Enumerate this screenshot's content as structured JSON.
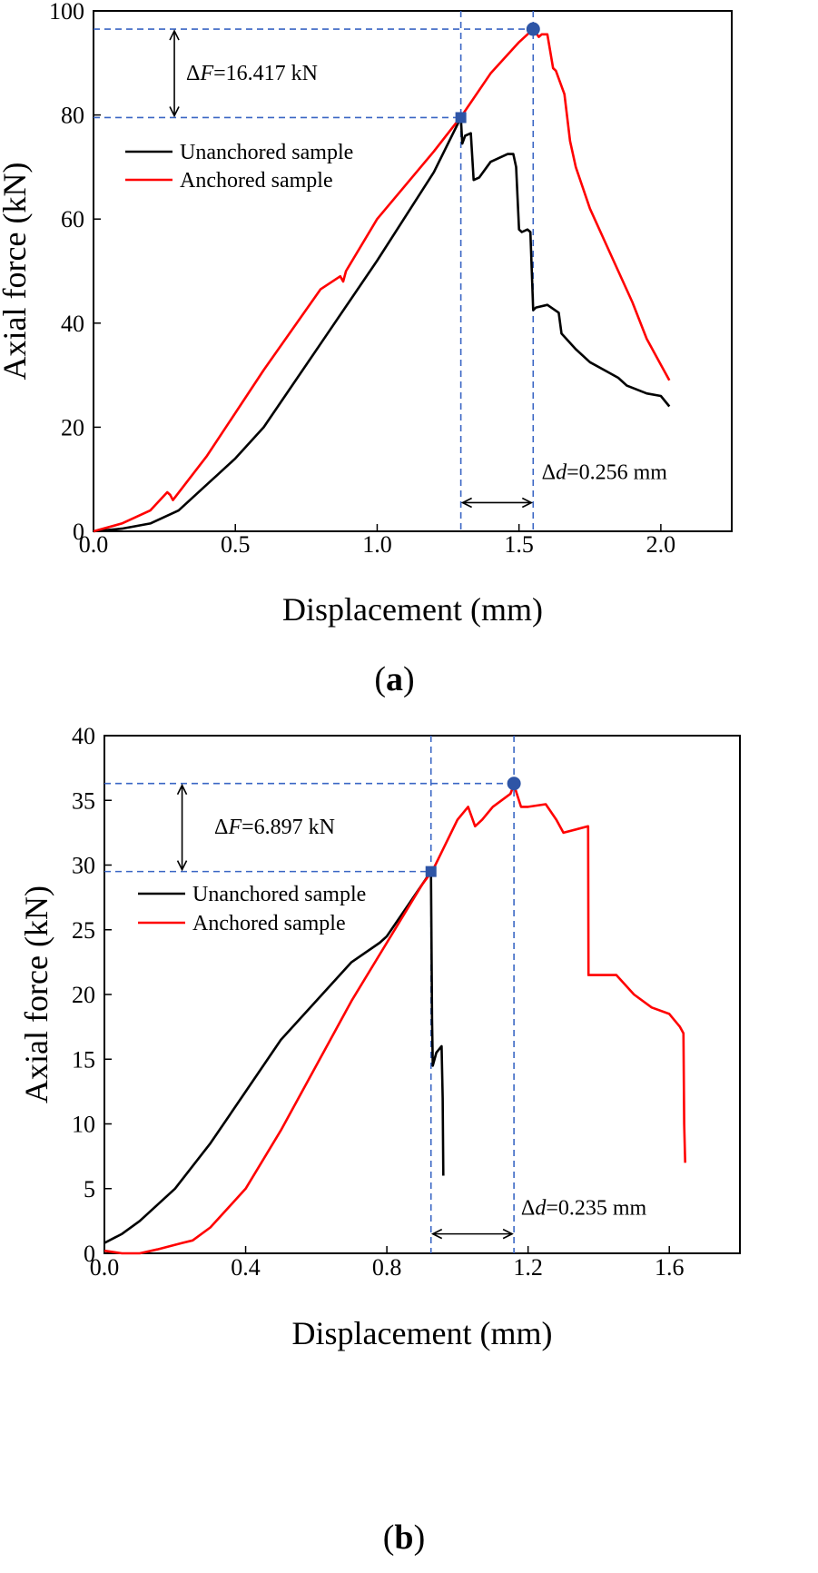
{
  "chart_data": [
    {
      "type": "line",
      "panel_label": "a",
      "xlabel": "Displacement (mm)",
      "ylabel": "Axial force (kN)",
      "xlim": [
        0,
        2.25
      ],
      "ylim": [
        0,
        100
      ],
      "xticks": [
        0.0,
        0.5,
        1.0,
        1.5,
        2.0
      ],
      "xtick_labels": [
        "0.0",
        "0.5",
        "1.0",
        "1.5",
        "2.0"
      ],
      "yticks": [
        0,
        20,
        40,
        60,
        80,
        100
      ],
      "ytick_labels": [
        "0",
        "20",
        "40",
        "60",
        "80",
        "100"
      ],
      "legend": [
        "Unanchored sample",
        "Anchored sample"
      ],
      "legend_position": "upper-left",
      "series": [
        {
          "name": "Unanchored sample",
          "color": "#000000",
          "x": [
            0.0,
            0.1,
            0.2,
            0.3,
            0.42,
            0.43,
            0.5,
            0.6,
            0.8,
            1.0,
            1.2,
            1.295,
            1.3,
            1.31,
            1.33,
            1.34,
            1.36,
            1.4,
            1.46,
            1.48,
            1.49,
            1.5,
            1.51,
            1.53,
            1.54,
            1.55,
            1.56,
            1.6,
            1.64,
            1.65,
            1.7,
            1.75,
            1.8,
            1.85,
            1.88,
            1.95,
            2.0,
            2.03
          ],
          "y": [
            0,
            0.5,
            1.5,
            4,
            10,
            10.5,
            14,
            20,
            36,
            52,
            69,
            79.5,
            74.5,
            76,
            76.5,
            67.5,
            68,
            71,
            72.5,
            72.5,
            70,
            58,
            57.5,
            58,
            57.5,
            42.5,
            43,
            43.5,
            42,
            38,
            35,
            32.5,
            31,
            29.5,
            28,
            26.5,
            26,
            24
          ]
        },
        {
          "name": "Anchored sample",
          "color": "#ff0000",
          "x": [
            0.0,
            0.1,
            0.2,
            0.26,
            0.27,
            0.28,
            0.4,
            0.6,
            0.8,
            0.87,
            0.88,
            0.89,
            1.0,
            1.2,
            1.3,
            1.4,
            1.5,
            1.55,
            1.57,
            1.58,
            1.6,
            1.62,
            1.63,
            1.66,
            1.68,
            1.7,
            1.75,
            1.8,
            1.85,
            1.9,
            1.95,
            2.0,
            2.03
          ],
          "y": [
            0,
            1.5,
            4,
            7.5,
            7,
            6,
            14.5,
            31,
            46.5,
            49,
            48,
            50,
            60,
            73,
            80,
            88,
            94,
            96.5,
            95,
            95.5,
            95.5,
            89,
            88.5,
            84,
            75,
            70,
            62,
            56,
            50,
            44,
            37,
            32,
            29
          ]
        }
      ],
      "markers": [
        {
          "shape": "square",
          "x": 1.295,
          "y": 79.5,
          "color": "#2e55a6"
        },
        {
          "shape": "circle",
          "x": 1.55,
          "y": 96.5,
          "color": "#2e55a6"
        }
      ],
      "ref_lines": {
        "color": "#3a66c4",
        "x": [
          1.295,
          1.55
        ],
        "y": [
          79.5,
          96.5
        ]
      },
      "annotations": {
        "delta_f": {
          "prefix": "Δ",
          "symbol": "F",
          "rest": "=16.417 kN",
          "arrow_x": 0.285
        },
        "delta_d": {
          "prefix": "Δ",
          "symbol": "d",
          "rest": "=0.256 mm",
          "arrow_y": 5.5,
          "label_x": 1.58,
          "label_y": 10
        }
      }
    },
    {
      "type": "line",
      "panel_label": "b",
      "xlabel": "Displacement (mm)",
      "ylabel": "Axial force (kN)",
      "xlim": [
        0,
        1.8
      ],
      "ylim": [
        0,
        40
      ],
      "xticks": [
        0.0,
        0.4,
        0.8,
        1.2,
        1.6
      ],
      "xtick_labels": [
        "0.0",
        "0.4",
        "0.8",
        "1.2",
        "1.6"
      ],
      "yticks": [
        0,
        5,
        10,
        15,
        20,
        25,
        30,
        35,
        40
      ],
      "ytick_labels": [
        "0",
        "5",
        "10",
        "15",
        "20",
        "25",
        "30",
        "35",
        "40"
      ],
      "legend": [
        "Unanchored sample",
        "Anchored sample"
      ],
      "legend_position": "upper-left",
      "series": [
        {
          "name": "Unanchored sample",
          "color": "#000000",
          "x": [
            0.0,
            0.05,
            0.1,
            0.2,
            0.3,
            0.4,
            0.5,
            0.6,
            0.7,
            0.78,
            0.8,
            0.85,
            0.9,
            0.925,
            0.928,
            0.93,
            0.94,
            0.955,
            0.958,
            0.96
          ],
          "y": [
            0.8,
            1.5,
            2.5,
            5,
            8.5,
            12.5,
            16.5,
            19.5,
            22.5,
            24,
            24.5,
            26.5,
            28.5,
            29.5,
            18,
            14.5,
            15.5,
            16,
            12,
            6
          ]
        },
        {
          "name": "Anchored sample",
          "color": "#ff0000",
          "x": [
            0.0,
            0.05,
            0.1,
            0.15,
            0.22,
            0.25,
            0.3,
            0.4,
            0.5,
            0.6,
            0.7,
            0.8,
            0.9,
            0.93,
            1.0,
            1.03,
            1.05,
            1.07,
            1.1,
            1.15,
            1.16,
            1.18,
            1.2,
            1.25,
            1.28,
            1.3,
            1.37,
            1.371,
            1.38,
            1.45,
            1.5,
            1.55,
            1.6,
            1.63,
            1.64,
            1.642,
            1.645
          ],
          "y": [
            0.2,
            0,
            0,
            0.3,
            0.8,
            1,
            2,
            5,
            9.5,
            14.5,
            19.5,
            24,
            28.5,
            29.6,
            33.5,
            34.5,
            33,
            33.5,
            34.5,
            35.5,
            36.2,
            34.5,
            34.5,
            34.7,
            33.5,
            32.5,
            33,
            21.5,
            21.5,
            21.5,
            20,
            19,
            18.5,
            17.5,
            17,
            10,
            7
          ]
        }
      ],
      "markers": [
        {
          "shape": "square",
          "x": 0.925,
          "y": 29.5,
          "color": "#2e55a6"
        },
        {
          "shape": "circle",
          "x": 1.16,
          "y": 36.3,
          "color": "#2e55a6"
        }
      ],
      "ref_lines": {
        "color": "#3a66c4",
        "x": [
          0.925,
          1.16
        ],
        "y": [
          29.5,
          36.3
        ]
      },
      "annotations": {
        "delta_f": {
          "prefix": "Δ",
          "symbol": "F",
          "rest": "=6.897 kN",
          "arrow_x": 0.22
        },
        "delta_d": {
          "prefix": "Δ",
          "symbol": "d",
          "rest": "=0.235 mm",
          "arrow_y": 1.5,
          "label_x": 1.18,
          "label_y": 3
        }
      }
    }
  ]
}
